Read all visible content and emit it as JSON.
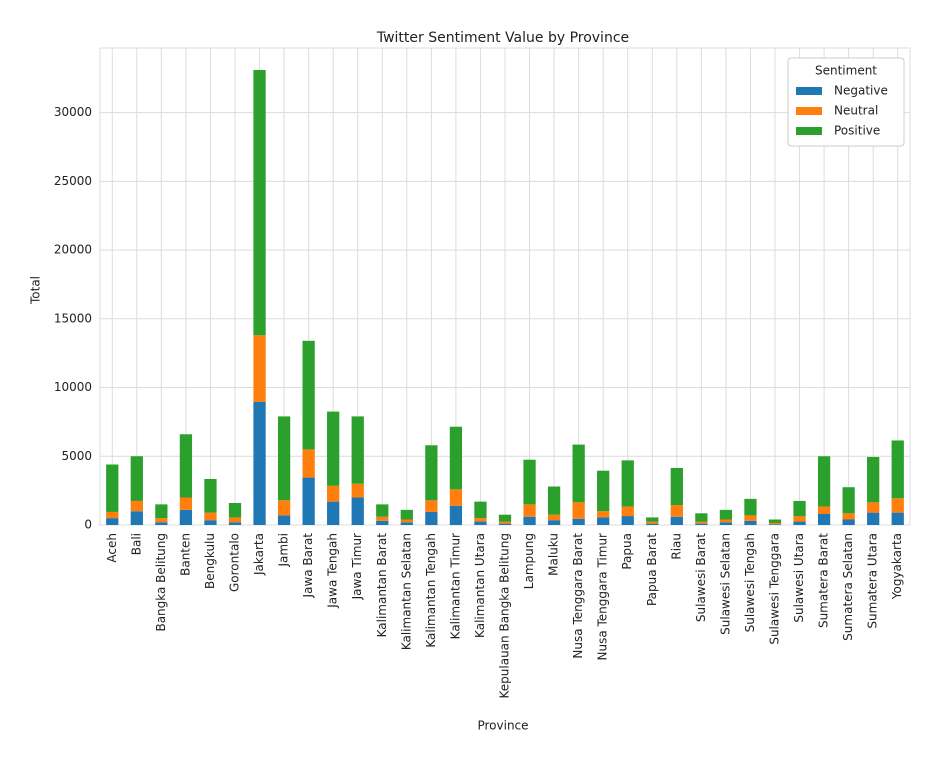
{
  "chart_data": {
    "type": "stacked-bar",
    "title": "Twitter Sentiment Value by Province",
    "x_label": "Province",
    "y_label": "Total",
    "legend_title": "Sentiment",
    "legend_position": "upper right",
    "grid": true,
    "ylim": [
      0,
      34700
    ],
    "yticks": [
      0,
      5000,
      10000,
      15000,
      20000,
      25000,
      30000
    ],
    "categories": [
      "Aceh",
      "Bali",
      "Bangka Belitung",
      "Banten",
      "Bengkulu",
      "Gorontalo",
      "Jakarta",
      "Jambi",
      "Jawa Barat",
      "Jawa Tengah",
      "Jawa Timur",
      "Kalimantan Barat",
      "Kalimantan Selatan",
      "Kalimantan Tengah",
      "Kalimantan Timur",
      "Kalimantan Utara",
      "Kepulauan Bangka Belitung",
      "Lampung",
      "Maluku",
      "Nusa Tenggara Barat",
      "Nusa Tenggara Timur",
      "Papua",
      "Papua Barat",
      "Riau",
      "Sulawesi Barat",
      "Sulawesi Selatan",
      "Sulawesi Tengah",
      "Sulawesi Tenggara",
      "Sulawesi Utara",
      "Sumatera Barat",
      "Sumatera Selatan",
      "Sumatera Utara",
      "Yogyakarta"
    ],
    "series": [
      {
        "name": "Negative",
        "color": "#1f77b4",
        "values": [
          500,
          1000,
          200,
          1100,
          350,
          200,
          8950,
          700,
          3450,
          1700,
          2000,
          300,
          200,
          950,
          1400,
          250,
          100,
          600,
          350,
          450,
          550,
          650,
          100,
          600,
          100,
          200,
          300,
          50,
          250,
          800,
          400,
          900,
          900
        ]
      },
      {
        "name": "Neutral",
        "color": "#ff7f0e",
        "values": [
          450,
          750,
          300,
          900,
          550,
          350,
          4850,
          1100,
          2050,
          1150,
          1000,
          300,
          200,
          850,
          1200,
          250,
          150,
          900,
          400,
          1200,
          450,
          700,
          150,
          850,
          150,
          200,
          400,
          100,
          400,
          550,
          450,
          750,
          1050
        ]
      },
      {
        "name": "Positive",
        "color": "#2ca02c",
        "values": [
          3450,
          3250,
          1000,
          4600,
          2450,
          1050,
          19300,
          6100,
          7900,
          5400,
          4900,
          900,
          700,
          4000,
          4550,
          1200,
          500,
          3250,
          2050,
          4200,
          2950,
          3350,
          300,
          2700,
          600,
          700,
          1200,
          250,
          1100,
          3650,
          1900,
          3300,
          4200
        ]
      }
    ]
  }
}
